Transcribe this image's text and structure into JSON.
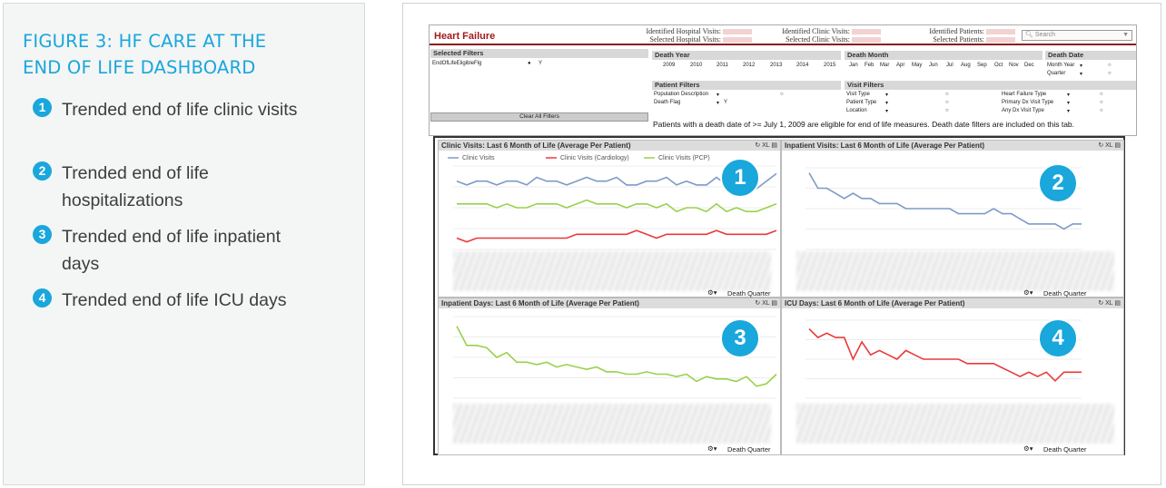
{
  "figure": {
    "title": "FIGURE 3: HF CARE AT THE END OF LIFE DASHBOARD",
    "items": [
      {
        "number": "1",
        "text": "Trended end of life clinic visits"
      },
      {
        "number": "2",
        "text": "Trended end of life hospitalizations"
      },
      {
        "number": "3",
        "text": "Trended end of life inpatient days"
      },
      {
        "number": "4",
        "text": "Trended end of life ICU days"
      }
    ]
  },
  "dashboard": {
    "title": "Heart Failure",
    "stats": {
      "hosp_visits": "Identified Hospital Visits:",
      "sel_hosp_visits": "Selected Hospital Visits:",
      "clinic_visits": "Identified Clinic Visits:",
      "sel_clinic_visits": "Selected Clinic Visits:",
      "patients": "Identified Patients:",
      "sel_patients": "Selected Patients:"
    },
    "search_placeholder": "Search",
    "selected_filters": {
      "label": "Selected Filters",
      "field": "EndOfLifeEligibleFlg",
      "value": "Y"
    },
    "clear_button": "Clear All Filters",
    "death_year": {
      "label": "Death Year",
      "years": [
        "2009",
        "2010",
        "2011",
        "2012",
        "2013",
        "2014",
        "2015"
      ]
    },
    "death_month": {
      "label": "Death Month",
      "months": [
        "Jan",
        "Feb",
        "Mar",
        "Apr",
        "May",
        "Jun",
        "Jul",
        "Aug",
        "Sep",
        "Oct",
        "Nov",
        "Dec"
      ]
    },
    "death_date": {
      "label": "Death Date",
      "options": [
        "Month Year",
        "Quarter"
      ]
    },
    "patient_filters": {
      "label": "Patient Filters",
      "rows": [
        "Population Description",
        "Death Flag"
      ],
      "death_flag_value": "Y"
    },
    "visit_filters": {
      "label": "Visit Filters",
      "col1": [
        "Visit Type",
        "Patient Type",
        "Location"
      ],
      "col2": [
        "Heart Failure Type",
        "Primary Dx Visit Type",
        "Any Dx Visit Type"
      ]
    },
    "notice": "Patients with a death date of >= July 1, 2009 are eligible for end of life measures. Death date filters are included on this tab."
  },
  "icons": {
    "search": "search-icon",
    "dropdown": "chevron-down-icon",
    "export": "xl-export-icon",
    "cycle": "cycle-icon"
  },
  "colors": {
    "accent": "#19a7dc",
    "brand_red": "#a31b1b"
  },
  "charts": [
    {
      "title": "Clinic Visits: Last 6 Month of Life (Average Per Patient)",
      "badge": "1",
      "xlabel": "Death Quarter",
      "legend": [
        "Clinic Visits",
        "Clinic Visits (Cardiology)",
        "Clinic Visits (PCP)"
      ]
    },
    {
      "title": "Inpatient Visits: Last 6 Month of Life (Average Per Patient)",
      "badge": "2",
      "xlabel": "Death Quarter"
    },
    {
      "title": "Inpatient Days: Last 6 Month of Life (Average Per Patient)",
      "badge": "3",
      "xlabel": "Death Quarter"
    },
    {
      "title": "ICU Days: Last 6 Month of Life (Average Per Patient)",
      "badge": "4",
      "xlabel": "Death Quarter"
    }
  ],
  "chart_data": [
    {
      "type": "line",
      "title": "Clinic Visits: Last 6 Month of Life (Average Per Patient)",
      "xlabel": "Death Quarter",
      "series": [
        {
          "name": "Clinic Visits",
          "color": "#7b9bc8",
          "values": [
            2.4,
            2.3,
            2.4,
            2.4,
            2.3,
            2.4,
            2.4,
            2.3,
            2.5,
            2.4,
            2.4,
            2.3,
            2.4,
            2.5,
            2.4,
            2.4,
            2.5,
            2.3,
            2.3,
            2.4,
            2.4,
            2.5,
            2.3,
            2.4,
            2.3,
            2.3,
            2.5,
            2.3,
            2.4,
            2.3,
            2.2,
            2.4,
            2.6
          ]
        },
        {
          "name": "Clinic Visits (Cardiology)",
          "color": "#e83a3a",
          "values": [
            0.9,
            0.8,
            0.9,
            0.9,
            0.9,
            0.9,
            0.9,
            0.9,
            0.9,
            0.9,
            0.9,
            0.9,
            1.0,
            1.0,
            1.0,
            1.0,
            1.0,
            1.0,
            1.1,
            1.0,
            0.9,
            1.0,
            1.0,
            1.0,
            1.0,
            1.0,
            1.1,
            1.0,
            1.0,
            1.0,
            1.0,
            1.0,
            1.1
          ]
        },
        {
          "name": "Clinic Visits (PCP)",
          "color": "#99d14b",
          "values": [
            1.8,
            1.8,
            1.8,
            1.8,
            1.7,
            1.8,
            1.7,
            1.7,
            1.8,
            1.8,
            1.8,
            1.7,
            1.8,
            1.9,
            1.8,
            1.8,
            1.8,
            1.7,
            1.8,
            1.8,
            1.7,
            1.8,
            1.6,
            1.7,
            1.7,
            1.6,
            1.8,
            1.6,
            1.7,
            1.6,
            1.6,
            1.7,
            1.8
          ]
        }
      ]
    },
    {
      "type": "line",
      "title": "Inpatient Visits: Last 6 Month of Life (Average Per Patient)",
      "xlabel": "Death Quarter",
      "series": [
        {
          "color": "#7b9bc8",
          "values": [
            2.3,
            2.0,
            2.0,
            1.9,
            1.8,
            1.9,
            1.8,
            1.8,
            1.7,
            1.7,
            1.7,
            1.6,
            1.6,
            1.6,
            1.6,
            1.6,
            1.6,
            1.5,
            1.5,
            1.5,
            1.5,
            1.6,
            1.5,
            1.5,
            1.4,
            1.3,
            1.3,
            1.3,
            1.3,
            1.2,
            1.3,
            1.3
          ]
        }
      ]
    },
    {
      "type": "line",
      "title": "Inpatient Days: Last 6 Month of Life (Average Per Patient)",
      "xlabel": "Death Quarter",
      "series": [
        {
          "color": "#99d14b",
          "values": [
            12.0,
            11.2,
            11.2,
            11.1,
            10.7,
            10.9,
            10.5,
            10.5,
            10.4,
            10.5,
            10.3,
            10.4,
            10.3,
            10.2,
            10.3,
            10.1,
            10.1,
            10.0,
            10.0,
            10.1,
            10.0,
            10.0,
            9.9,
            10.0,
            9.7,
            9.9,
            9.8,
            9.8,
            9.7,
            9.9,
            9.5,
            9.6,
            10.0
          ]
        }
      ]
    },
    {
      "type": "line",
      "title": "ICU Days: Last 6 Month of Life (Average Per Patient)",
      "xlabel": "Death Quarter",
      "series": [
        {
          "color": "#e83a3a",
          "values": [
            3.2,
            3.0,
            3.1,
            3.0,
            3.0,
            2.5,
            2.9,
            2.6,
            2.7,
            2.6,
            2.5,
            2.7,
            2.6,
            2.5,
            2.5,
            2.5,
            2.5,
            2.5,
            2.4,
            2.4,
            2.4,
            2.4,
            2.3,
            2.2,
            2.1,
            2.2,
            2.1,
            2.2,
            2.0,
            2.2,
            2.2,
            2.2
          ]
        }
      ]
    }
  ]
}
